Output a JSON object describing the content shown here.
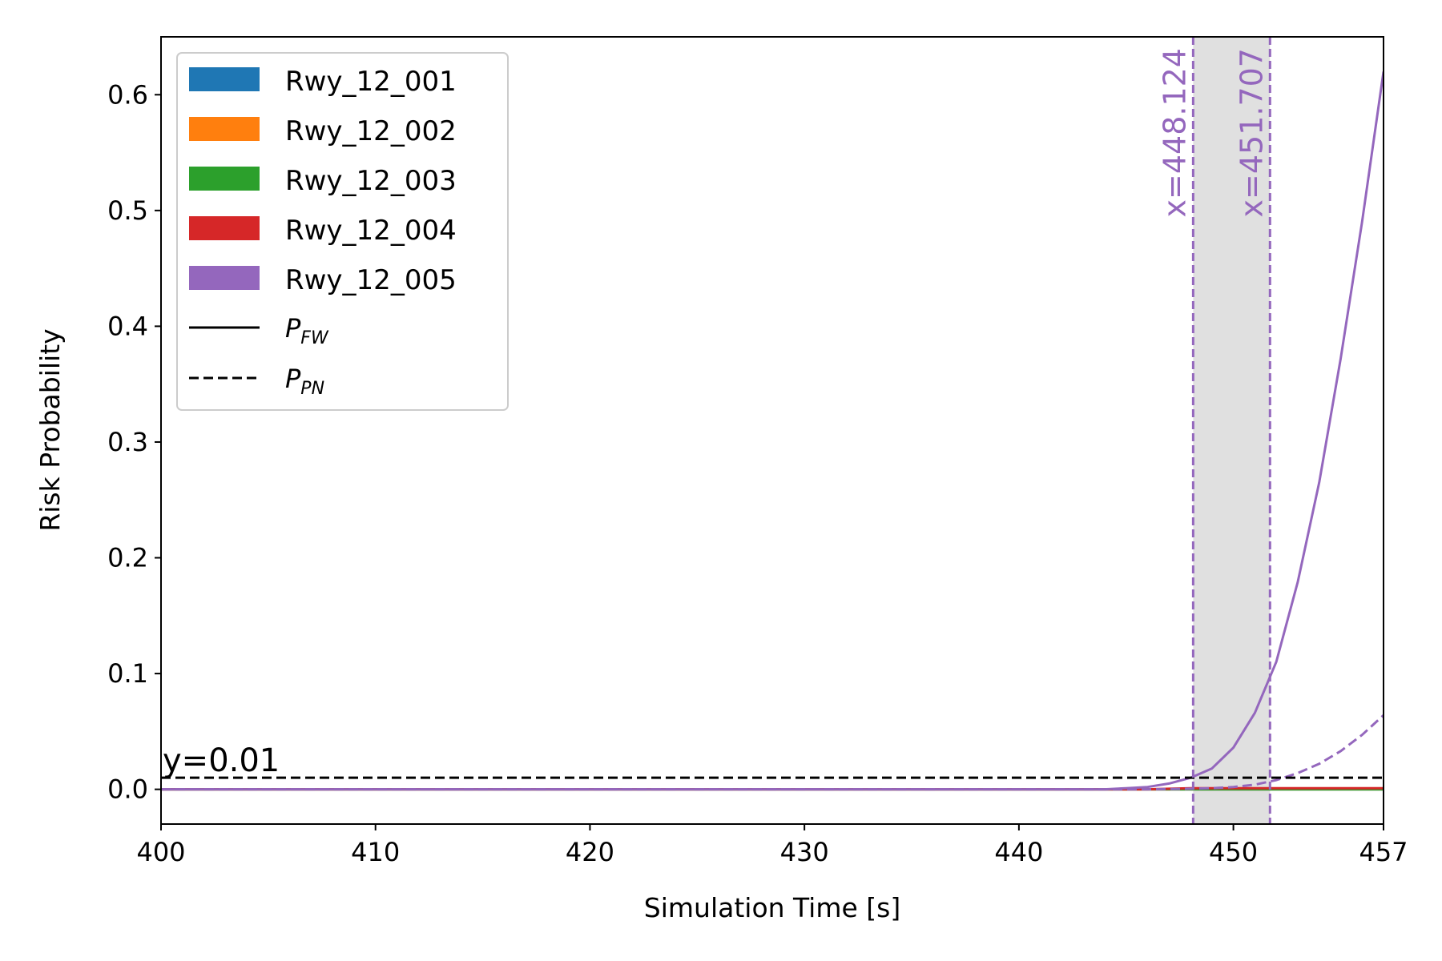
{
  "chart_data": {
    "type": "line",
    "xlabel": "Simulation Time [s]",
    "ylabel": "Risk Probability",
    "xlim": [
      400,
      457
    ],
    "ylim": [
      -0.03,
      0.65
    ],
    "xticks": [
      400,
      410,
      420,
      430,
      440,
      450,
      457
    ],
    "xtick_labels": [
      "400",
      "410",
      "420",
      "430",
      "440",
      "450",
      "457"
    ],
    "yticks": [
      0.0,
      0.1,
      0.2,
      0.3,
      0.4,
      0.5,
      0.6
    ],
    "ytick_labels": [
      "0.0",
      "0.1",
      "0.2",
      "0.3",
      "0.4",
      "0.5",
      "0.6"
    ],
    "grid": false,
    "legend_position": "top-left",
    "legend": {
      "series": [
        {
          "label": "Rwy_12_001",
          "color": "#1f77b4"
        },
        {
          "label": "Rwy_12_002",
          "color": "#ff7f0e"
        },
        {
          "label": "Rwy_12_003",
          "color": "#2ca02c"
        },
        {
          "label": "Rwy_12_004",
          "color": "#d62728"
        },
        {
          "label": "Rwy_12_005",
          "color": "#9467bd"
        }
      ],
      "styles": [
        {
          "main": "P",
          "sub": "FW",
          "linestyle": "solid"
        },
        {
          "main": "P",
          "sub": "PN",
          "linestyle": "dashed"
        }
      ]
    },
    "series": [
      {
        "name": "Rwy_12_001 P_FW",
        "color": "#1f77b4",
        "linestyle": "solid",
        "x": [
          400,
          445,
          457
        ],
        "y": [
          0,
          0,
          0
        ]
      },
      {
        "name": "Rwy_12_002 P_FW",
        "color": "#ff7f0e",
        "linestyle": "solid",
        "x": [
          400,
          445,
          457
        ],
        "y": [
          0,
          0,
          0
        ]
      },
      {
        "name": "Rwy_12_003 P_FW",
        "color": "#2ca02c",
        "linestyle": "solid",
        "x": [
          400,
          445,
          457
        ],
        "y": [
          0,
          0,
          0
        ]
      },
      {
        "name": "Rwy_12_004 P_FW",
        "color": "#d62728",
        "linestyle": "solid",
        "x": [
          400,
          446,
          447,
          448,
          449,
          450,
          451,
          452,
          453,
          454,
          455,
          456,
          457
        ],
        "y": [
          0,
          0,
          0.0005,
          0.001,
          0.001,
          0.001,
          0.001,
          0.001,
          0.001,
          0.001,
          0.001,
          0.001,
          0.001
        ]
      },
      {
        "name": "Rwy_12_005 P_FW",
        "color": "#9467bd",
        "linestyle": "solid",
        "x": [
          400,
          440,
          444,
          445,
          446,
          447,
          448,
          449,
          450,
          451,
          452,
          453,
          454,
          455,
          456,
          457
        ],
        "y": [
          0,
          0,
          0,
          0.001,
          0.002,
          0.005,
          0.01,
          0.018,
          0.036,
          0.066,
          0.11,
          0.179,
          0.265,
          0.372,
          0.49,
          0.62
        ]
      },
      {
        "name": "Rwy_12_005 P_PN",
        "color": "#9467bd",
        "linestyle": "dashed",
        "x": [
          400,
          446,
          448,
          449,
          450,
          451,
          452,
          453,
          454,
          455,
          456,
          457
        ],
        "y": [
          0,
          0,
          0.0005,
          0.001,
          0.002,
          0.004,
          0.008,
          0.014,
          0.022,
          0.033,
          0.047,
          0.064
        ]
      }
    ],
    "hline": {
      "y": 0.01,
      "label": "y=0.01",
      "color": "#000000",
      "linestyle": "dashed"
    },
    "vlines": [
      {
        "x": 448.124,
        "label": "x=448.124",
        "color": "#9467bd",
        "linestyle": "dashed"
      },
      {
        "x": 451.707,
        "label": "x=451.707",
        "color": "#9467bd",
        "linestyle": "dashed"
      }
    ],
    "shaded_region": {
      "x": [
        448.124,
        451.707
      ],
      "color": "#e0e0e0"
    }
  }
}
